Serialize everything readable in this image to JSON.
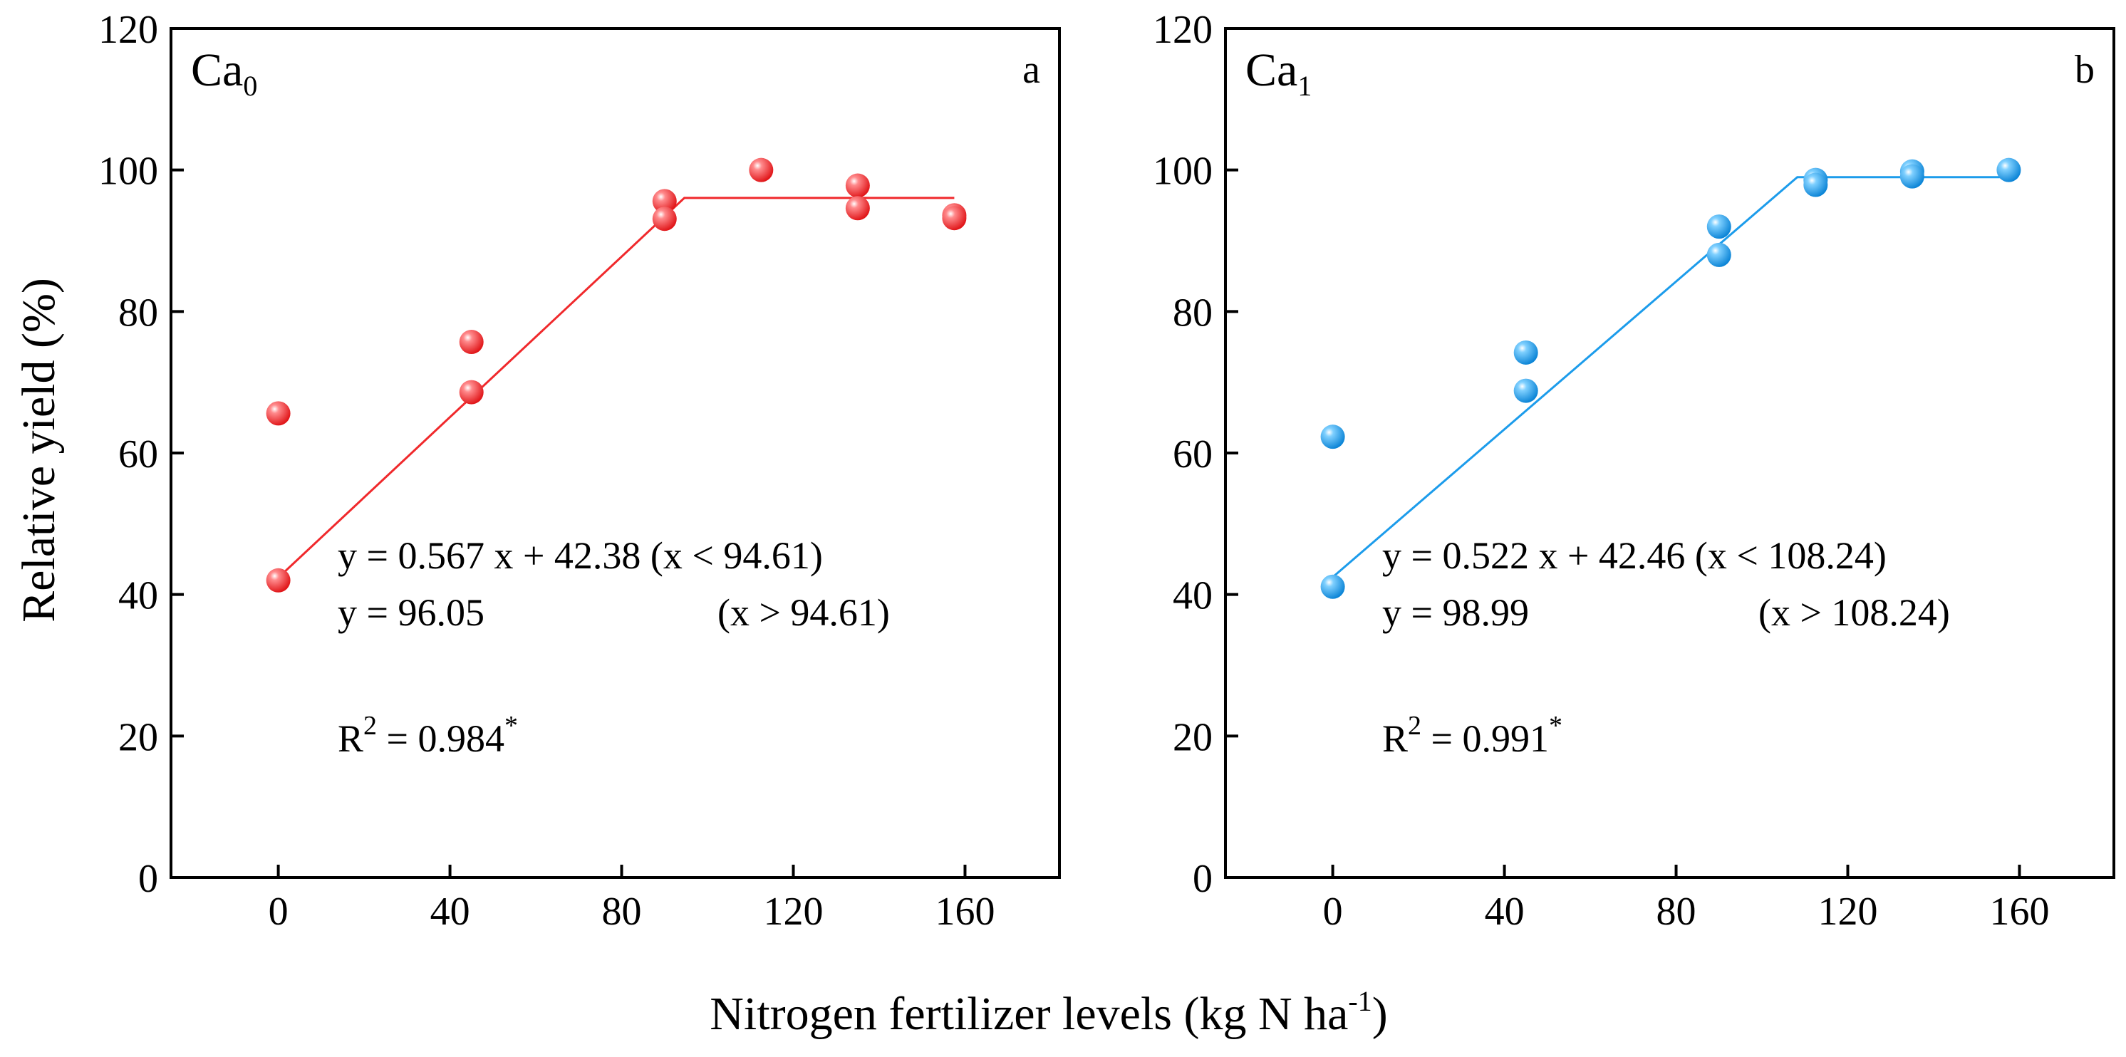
{
  "figure": {
    "ylabel": "Relative yield (%)",
    "xlabel_main": "Nitrogen fertilizer levels (kg N ha",
    "xlabel_sup": "-1",
    "xlabel_close": ")"
  },
  "chart_data": [
    {
      "type": "scatter",
      "panel_letter": "a",
      "label_base": "Ca",
      "label_sub": "0",
      "color": "#f0292c",
      "xlim": [
        -25,
        182
      ],
      "ylim": [
        0,
        120
      ],
      "xticks": [
        "0",
        "40",
        "80",
        "120",
        "160"
      ],
      "xtick_values": [
        0,
        40,
        80,
        120,
        160
      ],
      "yticks": [
        "0",
        "20",
        "40",
        "60",
        "80",
        "100",
        "120"
      ],
      "ytick_values": [
        0,
        20,
        40,
        60,
        80,
        100,
        120
      ],
      "points": {
        "x": [
          0,
          0,
          45,
          45,
          90,
          90,
          112.5,
          135,
          135,
          157.5,
          157.5
        ],
        "y": [
          65.6,
          42.0,
          75.7,
          68.6,
          95.6,
          93.1,
          100.0,
          97.8,
          94.6,
          93.6,
          93.2
        ]
      },
      "fit": {
        "slope": 0.567,
        "intercept": 42.38,
        "plateau": 96.05,
        "joint": 94.61,
        "x_start": 0,
        "x_end": 157.5
      },
      "eq_line1": "y = 0.567 x + 42.38 (x < 94.61)",
      "eq_line2_left": "y = 96.05",
      "eq_line2_right": "(x > 94.61)",
      "r2_prefix": "R",
      "r2_sup": "2",
      "r2_value": " = 0.984",
      "r2_star": "*"
    },
    {
      "type": "scatter",
      "panel_letter": "b",
      "label_base": "Ca",
      "label_sub": "1",
      "color": "#1c9ceb",
      "xlim": [
        -25,
        182
      ],
      "ylim": [
        0,
        120
      ],
      "xticks": [
        "0",
        "40",
        "80",
        "120",
        "160"
      ],
      "xtick_values": [
        0,
        40,
        80,
        120,
        160
      ],
      "yticks": [
        "0",
        "20",
        "40",
        "60",
        "80",
        "100",
        "120"
      ],
      "ytick_values": [
        0,
        20,
        40,
        60,
        80,
        100,
        120
      ],
      "points": {
        "x": [
          0,
          0,
          45,
          45,
          90,
          90,
          112.5,
          112.5,
          135,
          135,
          157.5
        ],
        "y": [
          62.3,
          41.1,
          74.2,
          68.8,
          92.0,
          88.0,
          98.6,
          97.9,
          99.8,
          99.1,
          100.0
        ]
      },
      "fit": {
        "slope": 0.522,
        "intercept": 42.46,
        "plateau": 98.99,
        "joint": 108.24,
        "x_start": 0,
        "x_end": 157.5
      },
      "eq_line1": "y = 0.522 x + 42.46 (x < 108.24)",
      "eq_line2_left": "y = 98.99",
      "eq_line2_right": "(x > 108.24)",
      "r2_prefix": "R",
      "r2_sup": "2",
      "r2_value": " = 0.991",
      "r2_star": "*"
    }
  ]
}
